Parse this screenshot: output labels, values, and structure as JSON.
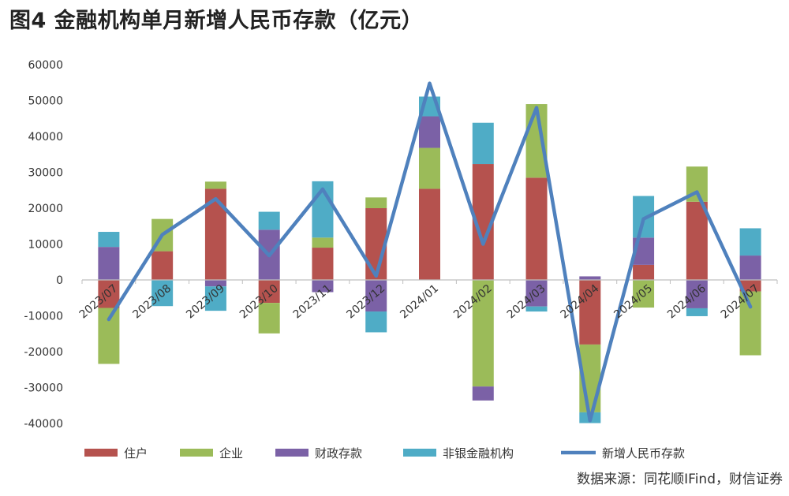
{
  "title": "图4  金融机构单月新增人民币存款（亿元）",
  "source": "数据来源：同花顺IFind，财信证券",
  "chart_data": {
    "type": "bar",
    "stacked": true,
    "categories": [
      "2023/07",
      "2023/08",
      "2023/09",
      "2023/10",
      "2023/11",
      "2023/12",
      "2024/01",
      "2024/02",
      "2024/03",
      "2024/04",
      "2024/05",
      "2024/06",
      "2024/07"
    ],
    "ylim": [
      -40000,
      60000
    ],
    "yticks": [
      60000,
      50000,
      40000,
      30000,
      20000,
      10000,
      0,
      -10000,
      -20000,
      -30000,
      -40000
    ],
    "grid": false,
    "legend_position": "bottom",
    "series": [
      {
        "name": "住户",
        "kind": "bar",
        "color": "#B5524E",
        "values": [
          -7800,
          8000,
          25400,
          -6400,
          9000,
          20000,
          25400,
          32300,
          28500,
          -18000,
          4200,
          21800,
          -3200
        ]
      },
      {
        "name": "企业",
        "kind": "bar",
        "color": "#9BBB59",
        "values": [
          -15600,
          9000,
          2000,
          -8500,
          2800,
          3000,
          11400,
          -29700,
          20500,
          -18900,
          -7700,
          9800,
          -17800
        ]
      },
      {
        "name": "财政存款",
        "kind": "bar",
        "color": "#7B61A6",
        "values": [
          9200,
          0,
          -1800,
          14000,
          -3400,
          -8800,
          8800,
          -3900,
          -7400,
          1000,
          7600,
          -7900,
          6800
        ]
      },
      {
        "name": "非银金融机构",
        "kind": "bar",
        "color": "#4FACC6",
        "values": [
          4200,
          -7300,
          -6800,
          5000,
          15700,
          -5800,
          5500,
          11500,
          -1400,
          -3000,
          11600,
          -2200,
          7600
        ]
      },
      {
        "name": "新增人民币存款",
        "kind": "line",
        "color": "#4F81BD",
        "values": [
          -11000,
          12600,
          22600,
          6800,
          25300,
          1100,
          54800,
          10000,
          48000,
          -39200,
          17000,
          24500,
          -7500
        ]
      }
    ]
  }
}
